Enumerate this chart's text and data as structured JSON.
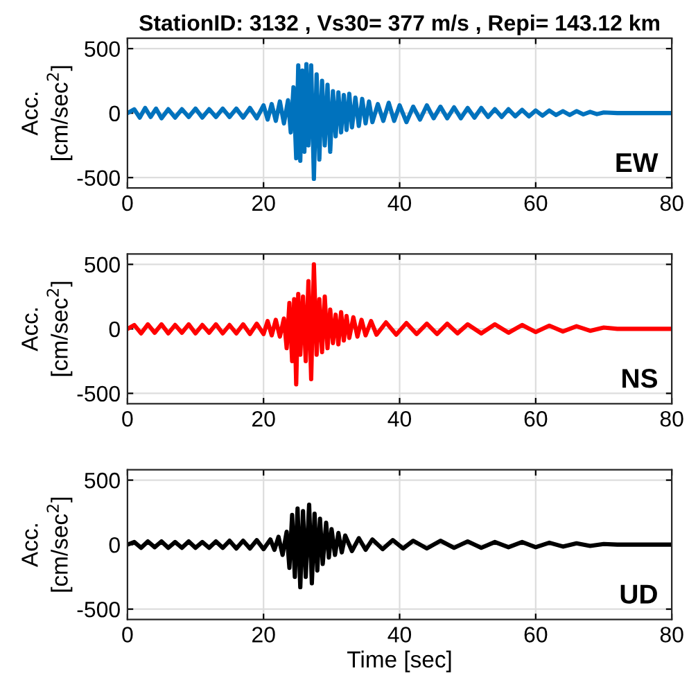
{
  "chart_data": [
    {
      "type": "line",
      "title": "StationID: 3132 , Vs30= 377 m/s , Repi= 143.12 km",
      "ylabel": "Acc.\n[cm/sec$^{2}$]",
      "annotations": [
        "EW"
      ],
      "xlim": [
        0,
        80
      ],
      "xticks": [
        0,
        20,
        40,
        60,
        80
      ],
      "ylim": [
        -580,
        580
      ],
      "yticks": [
        -500,
        0,
        500
      ],
      "grid": true,
      "line_style": "solid",
      "marker": "none",
      "series": [
        {
          "color": "#0072bd",
          "x": [
            0,
            1,
            1.8,
            2.6,
            3.4,
            4.2,
            5,
            6,
            7,
            8,
            9,
            10,
            11,
            12,
            13,
            14,
            15,
            16,
            17,
            18,
            19,
            20,
            20.6,
            21.2,
            21.8,
            22.4,
            23,
            23.6,
            24,
            24.4,
            24.8,
            25.1,
            25.4,
            25.7,
            26,
            26.3,
            26.6,
            27,
            27.4,
            27.8,
            28.2,
            28.6,
            29,
            29.4,
            29.8,
            30.2,
            30.6,
            31,
            31.4,
            31.8,
            32.2,
            32.6,
            33,
            33.5,
            34,
            34.5,
            35,
            35.5,
            36,
            36.8,
            37.6,
            38.4,
            39.2,
            40,
            41,
            42,
            43,
            44,
            45,
            46,
            47,
            48,
            49,
            50,
            51,
            52,
            53,
            54,
            55,
            56,
            57,
            58,
            59,
            60,
            61,
            62,
            63,
            64,
            65,
            66,
            67,
            68,
            69,
            70,
            72,
            80
          ],
          "values": [
            0,
            30,
            -35,
            40,
            -30,
            35,
            -40,
            30,
            -35,
            30,
            -30,
            35,
            -35,
            30,
            -30,
            35,
            -30,
            35,
            -35,
            40,
            -40,
            60,
            -50,
            70,
            -60,
            90,
            -80,
            100,
            -150,
            200,
            -350,
            370,
            -370,
            330,
            -300,
            380,
            -250,
            370,
            -510,
            300,
            -360,
            250,
            -250,
            220,
            -300,
            170,
            -180,
            160,
            -150,
            140,
            -130,
            150,
            -110,
            120,
            -100,
            110,
            -80,
            90,
            -70,
            70,
            -60,
            80,
            -60,
            60,
            -70,
            50,
            -50,
            60,
            -40,
            50,
            -40,
            45,
            -40,
            40,
            -35,
            40,
            -30,
            30,
            -30,
            30,
            -25,
            25,
            -25,
            20,
            -20,
            20,
            -15,
            15,
            -15,
            15,
            -10,
            10,
            -8,
            5,
            0,
            0
          ]
        }
      ]
    },
    {
      "type": "line",
      "ylabel": "Acc.\n[cm/sec$^{2}$]",
      "annotations": [
        "NS"
      ],
      "xlim": [
        0,
        80
      ],
      "xticks": [
        0,
        20,
        40,
        60,
        80
      ],
      "ylim": [
        -580,
        580
      ],
      "yticks": [
        -500,
        0,
        500
      ],
      "grid": true,
      "line_style": "solid",
      "marker": "none",
      "series": [
        {
          "color": "#ff0000",
          "x": [
            0,
            1,
            2,
            3,
            4,
            5,
            6,
            7,
            8,
            9,
            10,
            11,
            12,
            13,
            14,
            15,
            16,
            17,
            18,
            19,
            20,
            20.6,
            21.2,
            21.8,
            22.4,
            23,
            23.4,
            23.8,
            24.2,
            24.5,
            24.8,
            25.1,
            25.4,
            25.8,
            26.2,
            26.6,
            27,
            27.4,
            27.8,
            28.2,
            28.6,
            29,
            29.4,
            29.8,
            30.2,
            30.6,
            31,
            31.4,
            31.8,
            32.2,
            32.6,
            33.2,
            33.8,
            34.4,
            35,
            35.8,
            36.6,
            38,
            39.5,
            41,
            42.5,
            44,
            45.5,
            47,
            48.5,
            50,
            52,
            54,
            56,
            58,
            60,
            62,
            64,
            66,
            68,
            70,
            72,
            80
          ],
          "values": [
            0,
            30,
            -35,
            35,
            -30,
            35,
            -35,
            30,
            -30,
            35,
            -35,
            30,
            -30,
            35,
            -35,
            30,
            -35,
            35,
            -40,
            40,
            -40,
            60,
            -50,
            70,
            -60,
            80,
            -150,
            200,
            -250,
            230,
            -430,
            270,
            -200,
            250,
            -250,
            370,
            -390,
            500,
            -200,
            230,
            -180,
            250,
            -150,
            150,
            -110,
            110,
            -120,
            130,
            -90,
            100,
            -70,
            90,
            -60,
            70,
            -50,
            60,
            -45,
            50,
            -45,
            45,
            -40,
            40,
            -40,
            40,
            -35,
            35,
            -35,
            35,
            -30,
            30,
            -25,
            25,
            -20,
            20,
            -15,
            10,
            0,
            0
          ]
        }
      ]
    },
    {
      "type": "line",
      "ylabel": "Acc.\n[cm/sec$^{2}$]",
      "xlabel": "Time [sec]",
      "annotations": [
        "UD"
      ],
      "xlim": [
        0,
        80
      ],
      "xticks": [
        0,
        20,
        40,
        60,
        80
      ],
      "ylim": [
        -580,
        580
      ],
      "yticks": [
        -500,
        0,
        500
      ],
      "grid": true,
      "line_style": "solid",
      "marker": "none",
      "series": [
        {
          "color": "#000000",
          "x": [
            0,
            1,
            2,
            3,
            4,
            5,
            6,
            7,
            8,
            9,
            10,
            11,
            12,
            13,
            14,
            15,
            16,
            17,
            18,
            19,
            20,
            21,
            21.6,
            22.2,
            22.8,
            23.4,
            23.8,
            24.2,
            24.6,
            25,
            25.4,
            25.8,
            26.2,
            26.7,
            27.1,
            27.5,
            27.9,
            28.3,
            28.7,
            29.2,
            29.6,
            30,
            30.5,
            31,
            31.5,
            32,
            33,
            34,
            35,
            36,
            37.5,
            39,
            40.5,
            42,
            44,
            46,
            48,
            50,
            52,
            54,
            56,
            58,
            60,
            62,
            64,
            66,
            68,
            70,
            72,
            80
          ],
          "values": [
            0,
            20,
            -25,
            25,
            -20,
            25,
            -25,
            20,
            -25,
            25,
            -25,
            20,
            -25,
            25,
            -25,
            30,
            -30,
            30,
            -30,
            35,
            -35,
            40,
            -40,
            60,
            -80,
            100,
            -180,
            230,
            -250,
            280,
            -330,
            260,
            -250,
            310,
            -300,
            240,
            -200,
            200,
            -150,
            170,
            -100,
            120,
            -80,
            90,
            -60,
            70,
            -50,
            50,
            -40,
            40,
            -35,
            35,
            -30,
            30,
            -30,
            30,
            -25,
            25,
            -25,
            20,
            -20,
            20,
            -20,
            15,
            -15,
            10,
            -10,
            5,
            0,
            0
          ]
        }
      ]
    }
  ]
}
